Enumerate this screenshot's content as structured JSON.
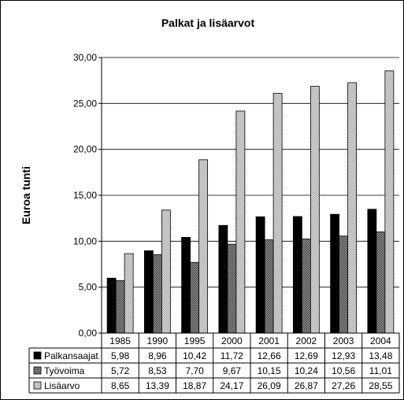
{
  "chart_data": {
    "type": "bar",
    "title": "Palkat ja lisäarvot",
    "ylabel": "Euroa tunti",
    "xlabel": "",
    "ylim": [
      0,
      30
    ],
    "ytick_labels": [
      "0,00",
      "5,00",
      "10,00",
      "15,00",
      "20,00",
      "25,00",
      "30,00"
    ],
    "grid": "horizontal",
    "legend": "data-table",
    "categories": [
      "1985",
      "1990",
      "1995",
      "2000",
      "2001",
      "2002",
      "2003",
      "2004"
    ],
    "series": [
      {
        "name": "Palkansaajat",
        "values": [
          5.98,
          8.96,
          10.42,
          11.72,
          12.66,
          12.69,
          12.93,
          13.48
        ],
        "labels": [
          "5,98",
          "8,96",
          "10,42",
          "11,72",
          "12,66",
          "12,69",
          "12,93",
          "13,48"
        ],
        "fill": "#000000"
      },
      {
        "name": "Työvoima",
        "values": [
          5.72,
          8.53,
          7.7,
          9.67,
          10.15,
          10.24,
          10.56,
          11.01
        ],
        "labels": [
          "5,72",
          "8,53",
          "7,70",
          "9,67",
          "10,15",
          "10,24",
          "10,56",
          "11,01"
        ],
        "fill": "#7a7a7a"
      },
      {
        "name": "Lisäarvo",
        "values": [
          8.65,
          13.39,
          18.87,
          24.17,
          26.09,
          26.87,
          27.26,
          28.55
        ],
        "labels": [
          "8,65",
          "13,39",
          "18,87",
          "24,17",
          "26,09",
          "26,87",
          "27,26",
          "28,55"
        ],
        "fill": "#cdcdcd"
      }
    ]
  }
}
